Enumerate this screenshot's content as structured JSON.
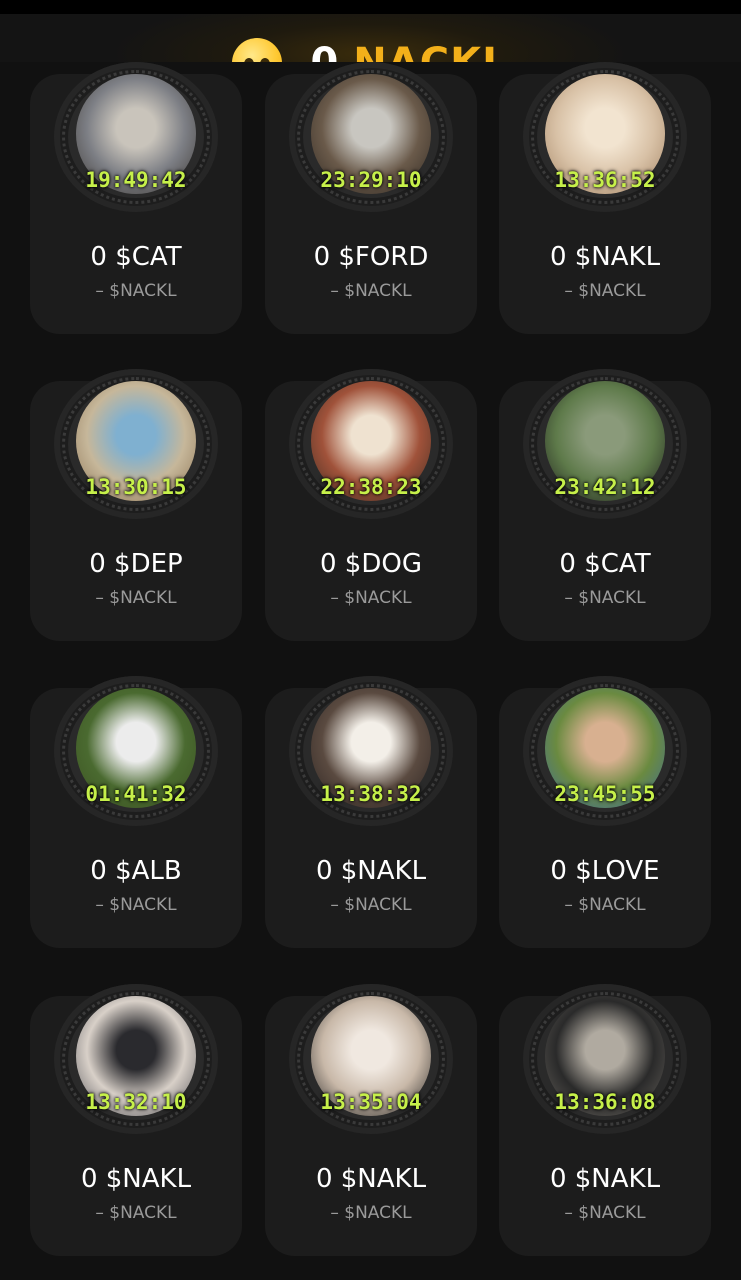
{
  "header": {
    "balance_value": "0",
    "balance_unit": "NACKL"
  },
  "cards": [
    {
      "timer": "19:49:42",
      "amount": "0 $CAT",
      "sub": "– $NACKL",
      "avatar": "cats-icon",
      "colors": [
        "#7d7f85",
        "#c9c4bb",
        "#3a3530"
      ]
    },
    {
      "timer": "23:29:10",
      "amount": "0 $FORD",
      "sub": "– $NACKL",
      "avatar": "goose-car-icon",
      "colors": [
        "#6a5a4a",
        "#c8c6c0",
        "#2d2620"
      ]
    },
    {
      "timer": "13:36:52",
      "amount": "0 $NAKL",
      "sub": "– $NACKL",
      "avatar": "grumpy-cat-icon",
      "colors": [
        "#d8c1a6",
        "#f2e4d0",
        "#a08060"
      ]
    },
    {
      "timer": "13:30:15",
      "amount": "0 $DEP",
      "sub": "– $NACKL",
      "avatar": "man-portrait-icon",
      "colors": [
        "#c6b79a",
        "#7fb0d0",
        "#8a7050"
      ]
    },
    {
      "timer": "22:38:23",
      "amount": "0 $DOG",
      "sub": "– $NACKL",
      "avatar": "dog-frog-icon",
      "colors": [
        "#a0523a",
        "#efe2d0",
        "#3a2a20"
      ]
    },
    {
      "timer": "23:42:12",
      "amount": "0 $CAT",
      "sub": "– $NACKL",
      "avatar": "cat-swan-icon",
      "colors": [
        "#5e7a4a",
        "#8a9a7a",
        "#1a1a1a"
      ]
    },
    {
      "timer": "01:41:32",
      "amount": "0 $ALB",
      "sub": "– $NACKL",
      "avatar": "white-deer-icon",
      "colors": [
        "#4a6a30",
        "#ececec",
        "#3a5020"
      ]
    },
    {
      "timer": "13:38:32",
      "amount": "0 $NAKL",
      "sub": "– $NACKL",
      "avatar": "white-cat-icon",
      "colors": [
        "#5a4a40",
        "#f3efe8",
        "#2a2220"
      ]
    },
    {
      "timer": "23:45:55",
      "amount": "0 $LOVE",
      "sub": "– $NACKL",
      "avatar": "woman-lions-icon",
      "colors": [
        "#6a8a40",
        "#d8b090",
        "#3a6aa0"
      ]
    },
    {
      "timer": "13:32:10",
      "amount": "0 $NAKL",
      "sub": "– $NACKL",
      "avatar": "black-cat-icon",
      "colors": [
        "#d8d0c8",
        "#2a2a2e",
        "#4a4a50"
      ]
    },
    {
      "timer": "13:35:04",
      "amount": "0 $NAKL",
      "sub": "– $NACKL",
      "avatar": "sphynx-cat-icon",
      "colors": [
        "#c8b8a8",
        "#f0e8e0",
        "#1a1a1a"
      ]
    },
    {
      "timer": "13:36:08",
      "amount": "0 $NAKL",
      "sub": "– $NACKL",
      "avatar": "fluffy-cat-icon",
      "colors": [
        "#2a2a2a",
        "#b0aaa0",
        "#6a6660"
      ]
    }
  ]
}
